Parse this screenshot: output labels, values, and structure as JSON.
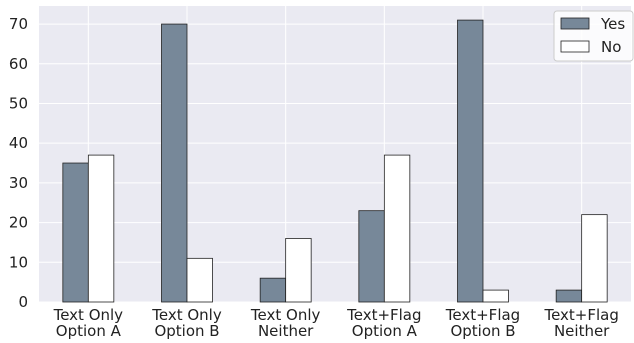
{
  "chart_data": {
    "type": "bar",
    "categories": [
      "Text Only\nOption A",
      "Text Only\nOption B",
      "Text Only\nNeither",
      "Text+Flag\nOption A",
      "Text+Flag\nOption B",
      "Text+Flag\nNeither"
    ],
    "series": [
      {
        "name": "Yes",
        "values": [
          35,
          70,
          6,
          23,
          71,
          3
        ],
        "color": "#778899"
      },
      {
        "name": "No",
        "values": [
          37,
          11,
          16,
          37,
          3,
          22
        ],
        "color": "#ffffff"
      }
    ],
    "ylim": [
      0,
      74.55
    ],
    "yticks": [
      0,
      10,
      20,
      30,
      40,
      50,
      60,
      70
    ],
    "grid": true,
    "legend": "top-right",
    "background": "#eaeaf2"
  }
}
